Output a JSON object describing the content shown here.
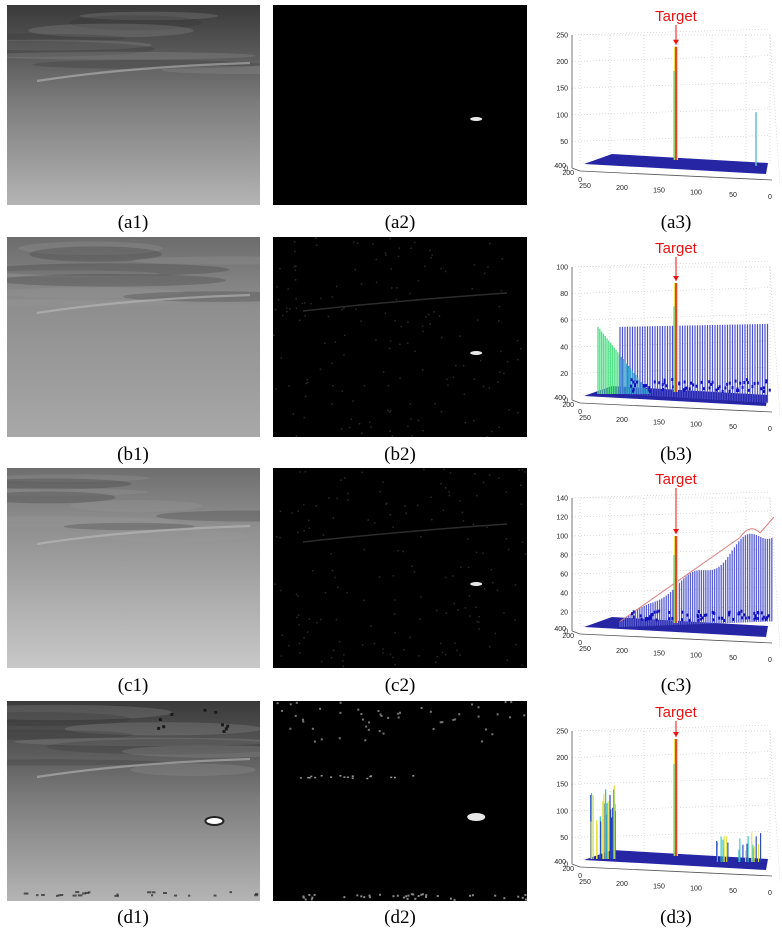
{
  "figure": {
    "rows": [
      {
        "captions": [
          "(a1)",
          "(a2)",
          "(a3)"
        ],
        "plot": {
          "type": "surface3d",
          "target_label": "Target",
          "z_ticks": [
            "0",
            "50",
            "100",
            "150",
            "200",
            "250"
          ],
          "z_max": 250,
          "x_ticks": [
            "250",
            "200",
            "150",
            "100",
            "50",
            "0"
          ],
          "y_ticks": [
            "0",
            "200",
            "400"
          ],
          "peak_value": 228,
          "clutter": "none",
          "clutter_level": 0
        },
        "scene": {
          "sky": "dark-cloudy",
          "target_visible_in_input": false,
          "detection_style": "clean"
        }
      },
      {
        "captions": [
          "(b1)",
          "(b2)",
          "(b3)"
        ],
        "plot": {
          "type": "surface3d",
          "target_label": "Target",
          "z_ticks": [
            "0",
            "20",
            "40",
            "60",
            "80",
            "100"
          ],
          "z_max": 100,
          "x_ticks": [
            "250",
            "200",
            "150",
            "100",
            "50",
            "0"
          ],
          "y_ticks": [
            "0",
            "200",
            "400"
          ],
          "peak_value": 88,
          "clutter": "plateau-left",
          "clutter_level": 55
        },
        "scene": {
          "sky": "grey-cloudy",
          "target_visible_in_input": false,
          "detection_style": "noisy"
        }
      },
      {
        "captions": [
          "(c1)",
          "(c2)",
          "(c3)"
        ],
        "plot": {
          "type": "surface3d",
          "target_label": "Target",
          "z_ticks": [
            "0",
            "20",
            "40",
            "60",
            "80",
            "100",
            "120",
            "140"
          ],
          "z_max": 140,
          "x_ticks": [
            "250",
            "200",
            "150",
            "100",
            "50",
            "0"
          ],
          "y_ticks": [
            "0",
            "200",
            "400"
          ],
          "peak_value": 100,
          "clutter": "ramp-right",
          "clutter_level": 120
        },
        "scene": {
          "sky": "light-grey",
          "target_visible_in_input": false,
          "detection_style": "noisy"
        }
      },
      {
        "captions": [
          "(d1)",
          "(d2)",
          "(d3)"
        ],
        "plot": {
          "type": "surface3d",
          "target_label": "Target",
          "z_ticks": [
            "0",
            "50",
            "100",
            "150",
            "200",
            "250"
          ],
          "z_max": 250,
          "x_ticks": [
            "250",
            "200",
            "150",
            "100",
            "50",
            "0"
          ],
          "y_ticks": [
            "0",
            "200",
            "400"
          ],
          "peak_value": 235,
          "clutter": "spikes",
          "clutter_level": 150
        },
        "scene": {
          "sky": "dark-cloudy",
          "target_visible_in_input": true,
          "detection_style": "speckled"
        }
      }
    ],
    "colors": {
      "target_label": "#ee1111",
      "surface_base": "#1a1aa0",
      "peak": "#dd2222"
    }
  }
}
